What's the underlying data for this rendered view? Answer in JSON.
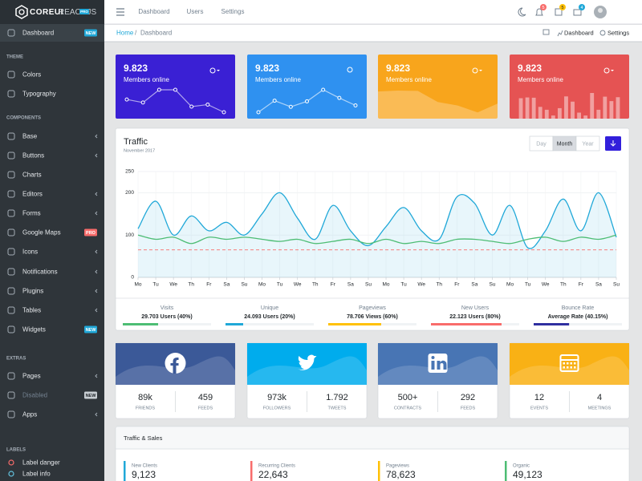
{
  "header": {
    "brand": "COREUI",
    "brand_sub": "REACT.JS",
    "brand_badge": "PRO",
    "nav": [
      "Dashboard",
      "Users",
      "Settings"
    ],
    "badges": [
      5,
      5,
      4
    ]
  },
  "breadcrumb": {
    "items": [
      "Home",
      "Dashboard"
    ],
    "separator": "/",
    "actions": [
      "Dashboard",
      "Settings"
    ]
  },
  "sidebar": {
    "items": [
      {
        "label": "Dashboard",
        "badge": "NEW",
        "active": true
      },
      {
        "heading": "THEME"
      },
      {
        "label": "Colors"
      },
      {
        "label": "Typography"
      },
      {
        "heading": "COMPONENTS"
      },
      {
        "label": "Base",
        "arrow": true
      },
      {
        "label": "Buttons",
        "arrow": true
      },
      {
        "label": "Charts"
      },
      {
        "label": "Editors",
        "arrow": true
      },
      {
        "label": "Forms",
        "arrow": true
      },
      {
        "label": "Google Maps",
        "badge": "PRO"
      },
      {
        "label": "Icons",
        "arrow": true
      },
      {
        "label": "Notifications",
        "arrow": true
      },
      {
        "label": "Plugins",
        "arrow": true
      },
      {
        "label": "Tables",
        "arrow": true
      },
      {
        "label": "Widgets",
        "badge": "NEW"
      },
      {
        "heading": "EXTRAS"
      },
      {
        "label": "Pages",
        "arrow": true
      },
      {
        "label": "Disabled",
        "badge": "NEW",
        "disabled": true
      },
      {
        "label": "Apps",
        "arrow": true
      },
      {
        "heading": "LABELS"
      },
      {
        "label": "Label danger"
      },
      {
        "label": "Label info"
      }
    ]
  },
  "cards": [
    {
      "value": "9.823",
      "label": "Members online",
      "color": "#3a20d4",
      "kind": "line",
      "spark": [
        65,
        59,
        84,
        84,
        51,
        55,
        40
      ]
    },
    {
      "value": "9.823",
      "label": "Members online",
      "color": "#2f91f0",
      "kind": "line",
      "spark": [
        1,
        18,
        9,
        17,
        34,
        22,
        11
      ]
    },
    {
      "value": "9.823",
      "label": "Members online",
      "color": "#f8a51c",
      "kind": "area",
      "spark": [
        78,
        81,
        80,
        45,
        34,
        12,
        40
      ]
    },
    {
      "value": "9.823",
      "label": "Members online",
      "color": "#e55353",
      "kind": "bar",
      "spark": [
        78,
        81,
        80,
        45,
        34,
        12,
        40,
        85,
        65,
        23,
        12,
        98,
        34,
        84,
        67,
        82
      ]
    }
  ],
  "traffic": {
    "title": "Traffic",
    "subtitle": "November 2017",
    "buttons": [
      "Day",
      "Month",
      "Year"
    ],
    "active_button": 1,
    "chart": {
      "type": "line",
      "categories": [
        "Mo",
        "Tu",
        "We",
        "Th",
        "Fr",
        "Sa",
        "Su",
        "Mo",
        "Tu",
        "We",
        "Th",
        "Fr",
        "Sa",
        "Su",
        "Mo",
        "Tu",
        "We",
        "Th",
        "Fr",
        "Sa",
        "Su",
        "Mo",
        "Tu",
        "We",
        "Th",
        "Fr",
        "Sa",
        "Su"
      ],
      "series": [
        {
          "color": "#20a8d8",
          "fill": true,
          "values": [
            115,
            180,
            100,
            145,
            110,
            130,
            100,
            150,
            200,
            140,
            90,
            170,
            110,
            75,
            120,
            165,
            110,
            90,
            190,
            175,
            100,
            170,
            70,
            110,
            185,
            110,
            200,
            95
          ]
        },
        {
          "color": "#4dbd74",
          "values": [
            100,
            90,
            95,
            80,
            95,
            90,
            95,
            90,
            85,
            90,
            80,
            85,
            90,
            80,
            90,
            80,
            85,
            80,
            90,
            90,
            85,
            80,
            90,
            95,
            85,
            95,
            90,
            100
          ]
        },
        {
          "color": "#f86c6b",
          "dashed": true,
          "values": [
            65,
            65,
            65,
            65,
            65,
            65,
            65,
            65,
            65,
            65,
            65,
            65,
            65,
            65,
            65,
            65,
            65,
            65,
            65,
            65,
            65,
            65,
            65,
            65,
            65,
            65,
            65,
            65
          ]
        }
      ],
      "ylim": [
        0,
        250
      ],
      "yticks": [
        0,
        100,
        200,
        250
      ],
      "grid": true
    },
    "stats": [
      {
        "title": "Visits",
        "value": "29.703 Users (40%)",
        "progress": 40,
        "color": "#4dbd74"
      },
      {
        "title": "Unique",
        "value": "24.093 Users (20%)",
        "progress": 20,
        "color": "#20a8d8"
      },
      {
        "title": "Pageviews",
        "value": "78.706 Views (60%)",
        "progress": 60,
        "color": "#ffc107"
      },
      {
        "title": "New Users",
        "value": "22.123 Users (80%)",
        "progress": 80,
        "color": "#f86c6b"
      },
      {
        "title": "Bounce Rate",
        "value": "Average Rate (40.15%)",
        "progress": 40.15,
        "color": "#2f2fa0"
      }
    ]
  },
  "social": [
    {
      "icon": "facebook",
      "color": "#3b5998",
      "values": [
        "89k",
        "459"
      ],
      "labels": [
        "FRIENDS",
        "FEEDS"
      ]
    },
    {
      "icon": "twitter",
      "color": "#00aced",
      "values": [
        "973k",
        "1.792"
      ],
      "labels": [
        "FOLLOWERS",
        "TWEETS"
      ]
    },
    {
      "icon": "linkedin",
      "color": "#4875b4",
      "values": [
        "500+",
        "292"
      ],
      "labels": [
        "CONTRACTS",
        "FEEDS"
      ]
    },
    {
      "icon": "calendar",
      "color": "#f9b115",
      "values": [
        "12",
        "4"
      ],
      "labels": [
        "EVENTS",
        "MEETINGS"
      ]
    }
  ],
  "sales": {
    "title": "Traffic & Sales",
    "items": [
      {
        "label": "New Clients",
        "value": "9,123",
        "color": "#20a8d8"
      },
      {
        "label": "Recurring Clients",
        "value": "22,643",
        "color": "#f86c6b"
      },
      {
        "label": "Pageviews",
        "value": "78,623",
        "color": "#ffc107"
      },
      {
        "label": "Organic",
        "value": "49,123",
        "color": "#4dbd74"
      }
    ]
  }
}
